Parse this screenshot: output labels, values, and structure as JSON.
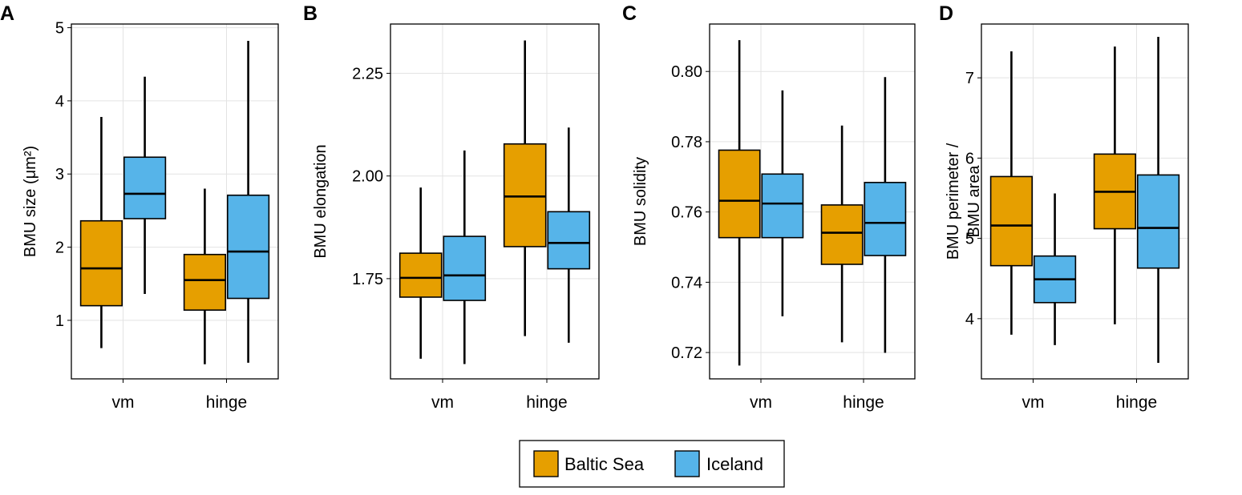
{
  "colors": {
    "baltic": "#E69F00",
    "iceland": "#56B4E9"
  },
  "legend": [
    {
      "name": "Baltic Sea",
      "color_key": "baltic"
    },
    {
      "name": "Iceland",
      "color_key": "iceland"
    }
  ],
  "chart_data": [
    {
      "type": "box",
      "panel": "A",
      "ylabel": "BMU size (μm²)",
      "ylim": [
        0.2,
        5.05
      ],
      "yticks": [
        1,
        2,
        3,
        4,
        5
      ],
      "ytick_labels": [
        "1",
        "2",
        "3",
        "4",
        "5"
      ],
      "categories": [
        "vm",
        "hinge"
      ],
      "series": [
        {
          "name": "Baltic Sea",
          "boxes": [
            {
              "min": 0.62,
              "q1": 1.2,
              "median": 1.71,
              "q3": 2.36,
              "max": 3.78
            },
            {
              "min": 0.4,
              "q1": 1.14,
              "median": 1.55,
              "q3": 1.9,
              "max": 2.8
            }
          ]
        },
        {
          "name": "Iceland",
          "boxes": [
            {
              "min": 1.36,
              "q1": 2.39,
              "median": 2.73,
              "q3": 3.23,
              "max": 4.33
            },
            {
              "min": 0.42,
              "q1": 1.3,
              "median": 1.94,
              "q3": 2.71,
              "max": 4.82
            }
          ]
        }
      ]
    },
    {
      "type": "box",
      "panel": "B",
      "ylabel": "BMU elongation",
      "ylim": [
        1.506,
        2.37
      ],
      "yticks": [
        1.75,
        2.0,
        2.25
      ],
      "ytick_labels": [
        "1.75",
        "2.00",
        "2.25"
      ],
      "categories": [
        "vm",
        "hinge"
      ],
      "series": [
        {
          "name": "Baltic Sea",
          "boxes": [
            {
              "min": 1.555,
              "q1": 1.705,
              "median": 1.752,
              "q3": 1.812,
              "max": 1.972
            },
            {
              "min": 1.61,
              "q1": 1.828,
              "median": 1.95,
              "q3": 2.078,
              "max": 2.33
            }
          ]
        },
        {
          "name": "Iceland",
          "boxes": [
            {
              "min": 1.542,
              "q1": 1.697,
              "median": 1.758,
              "q3": 1.853,
              "max": 2.062
            },
            {
              "min": 1.594,
              "q1": 1.774,
              "median": 1.837,
              "q3": 1.913,
              "max": 2.118
            }
          ]
        }
      ]
    },
    {
      "type": "box",
      "panel": "C",
      "ylabel": "BMU solidity",
      "ylim": [
        0.7125,
        0.8135
      ],
      "yticks": [
        0.72,
        0.74,
        0.76,
        0.78,
        0.8
      ],
      "ytick_labels": [
        "0.72",
        "0.74",
        "0.76",
        "0.78",
        "0.80"
      ],
      "categories": [
        "vm",
        "hinge"
      ],
      "series": [
        {
          "name": "Baltic Sea",
          "boxes": [
            {
              "min": 0.7163,
              "q1": 0.7527,
              "median": 0.7632,
              "q3": 0.7776,
              "max": 0.8089
            },
            {
              "min": 0.7229,
              "q1": 0.7451,
              "median": 0.7541,
              "q3": 0.762,
              "max": 0.7846
            }
          ]
        },
        {
          "name": "Iceland",
          "boxes": [
            {
              "min": 0.7303,
              "q1": 0.7527,
              "median": 0.7624,
              "q3": 0.7708,
              "max": 0.7946
            },
            {
              "min": 0.7199,
              "q1": 0.7476,
              "median": 0.7569,
              "q3": 0.7684,
              "max": 0.7984
            }
          ]
        }
      ]
    },
    {
      "type": "box",
      "panel": "D",
      "ylabel": "BMU perimeter / BMU area",
      "ylabel_lines": [
        "BMU perimeter /",
        "BMU area"
      ],
      "ylim": [
        3.25,
        7.67
      ],
      "yticks": [
        4,
        5,
        6,
        7
      ],
      "ytick_labels": [
        "4",
        "5",
        "6",
        "7"
      ],
      "categories": [
        "vm",
        "hinge"
      ],
      "series": [
        {
          "name": "Baltic Sea",
          "boxes": [
            {
              "min": 3.8,
              "q1": 4.66,
              "median": 5.16,
              "q3": 5.77,
              "max": 7.33
            },
            {
              "min": 3.93,
              "q1": 5.12,
              "median": 5.58,
              "q3": 6.05,
              "max": 7.39
            }
          ]
        },
        {
          "name": "Iceland",
          "boxes": [
            {
              "min": 3.67,
              "q1": 4.2,
              "median": 4.49,
              "q3": 4.78,
              "max": 5.56
            },
            {
              "min": 3.45,
              "q1": 4.63,
              "median": 5.13,
              "q3": 5.79,
              "max": 7.51
            }
          ]
        }
      ]
    }
  ]
}
